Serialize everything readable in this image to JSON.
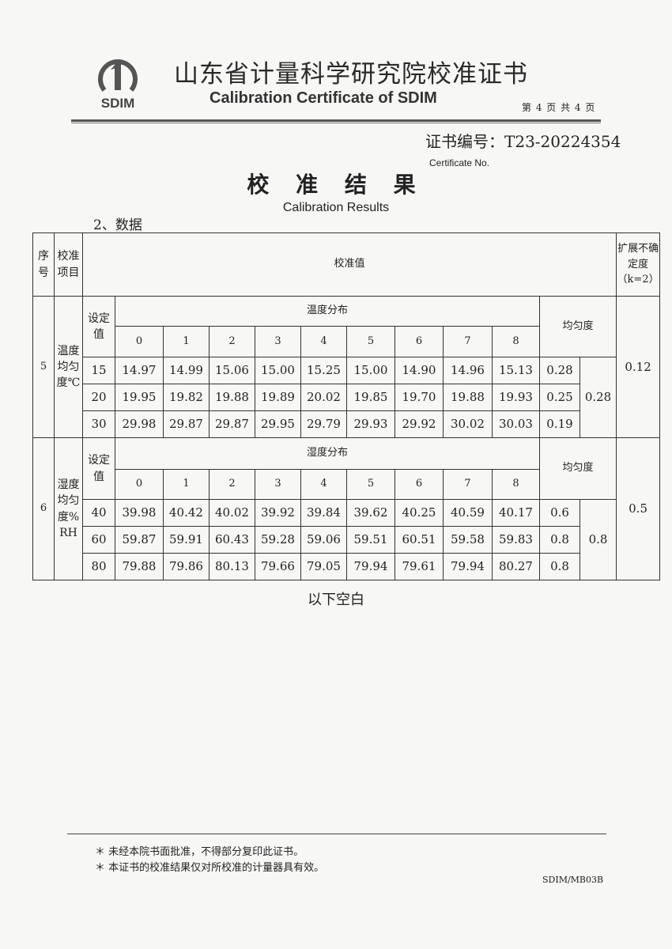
{
  "header": {
    "logo_text": "SDIM",
    "title_cn": "山东省计量科学研究院校准证书",
    "title_en": "Calibration Certificate of SDIM",
    "page_info": "第 4 页 共 4 页",
    "certificate_no_label": "证书编号：T23-20224354",
    "certificate_no_en": "Certificate No."
  },
  "results": {
    "title_cn": "校 准 结 果",
    "title_en": "Calibration Results",
    "section": "2、数据"
  },
  "table": {
    "headers": {
      "index": "序号",
      "item": "校准项目",
      "value": "校准值",
      "uncertainty": "扩展不确定度（k=2）"
    },
    "blocks": [
      {
        "index": "5",
        "item": "温度均匀度℃",
        "setpoint_label": "设定值",
        "distribution_label": "温度分布",
        "uniformity_label": "均匀度",
        "points": [
          "0",
          "1",
          "2",
          "3",
          "4",
          "5",
          "6",
          "7",
          "8"
        ],
        "rows": [
          {
            "setpoint": "15",
            "values": [
              "14.97",
              "14.99",
              "15.06",
              "15.00",
              "15.25",
              "15.00",
              "14.90",
              "14.96",
              "15.13"
            ],
            "uniformity": "0.28"
          },
          {
            "setpoint": "20",
            "values": [
              "19.95",
              "19.82",
              "19.88",
              "19.89",
              "20.02",
              "19.85",
              "19.70",
              "19.88",
              "19.93"
            ],
            "uniformity": "0.25"
          },
          {
            "setpoint": "30",
            "values": [
              "29.98",
              "29.87",
              "29.87",
              "29.95",
              "29.79",
              "29.93",
              "29.92",
              "30.02",
              "30.03"
            ],
            "uniformity": "0.19"
          }
        ],
        "overall_uniformity": "0.28",
        "uncertainty": "0.12"
      },
      {
        "index": "6",
        "item": "湿度均匀度%RH",
        "setpoint_label": "设定值",
        "distribution_label": "湿度分布",
        "uniformity_label": "均匀度",
        "points": [
          "0",
          "1",
          "2",
          "3",
          "4",
          "5",
          "6",
          "7",
          "8"
        ],
        "rows": [
          {
            "setpoint": "40",
            "values": [
              "39.98",
              "40.42",
              "40.02",
              "39.92",
              "39.84",
              "39.62",
              "40.25",
              "40.59",
              "40.17"
            ],
            "uniformity": "0.6"
          },
          {
            "setpoint": "60",
            "values": [
              "59.87",
              "59.91",
              "60.43",
              "59.28",
              "59.06",
              "59.51",
              "60.51",
              "59.58",
              "59.83"
            ],
            "uniformity": "0.8"
          },
          {
            "setpoint": "80",
            "values": [
              "79.88",
              "79.86",
              "80.13",
              "79.66",
              "79.05",
              "79.94",
              "79.61",
              "79.94",
              "80.27"
            ],
            "uniformity": "0.8"
          }
        ],
        "overall_uniformity": "0.8",
        "uncertainty": "0.5"
      }
    ]
  },
  "blank_notice": "以下空白",
  "footer": {
    "notes": [
      "＊ 未经本院书面批准，不得部分复印此证书。",
      "＊ 本证书的校准结果仅对所校准的计量器具有效。"
    ],
    "form_code": "SDIM/MB03B"
  }
}
